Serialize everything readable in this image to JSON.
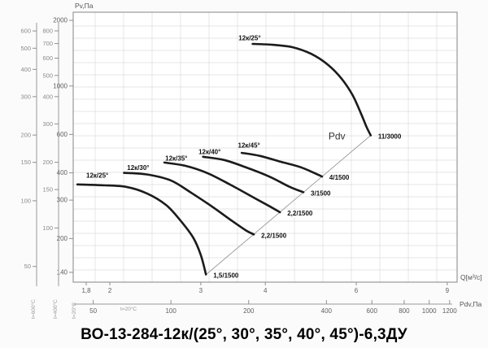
{
  "page": {
    "title": "ВО-13-284-12к/(25°, 30°, 35°, 40°, 45°)-6,3ДУ"
  },
  "chart_data": {
    "type": "line",
    "description": "Fan aerodynamic performance curves, log-log scales: static pressure Pv vs volume flow Q",
    "x_axis": {
      "label": "Q[м³/с]",
      "scale": "log",
      "tick_labels": [
        "1,8",
        "2",
        "3",
        "4",
        "6",
        "9"
      ],
      "range": [
        1.7,
        9.4
      ]
    },
    "y_axis": {
      "label": "Pv,Па",
      "condition": "t=20°C",
      "scale": "log",
      "ticks": [
        2000,
        1000,
        600,
        400,
        300,
        200,
        140
      ],
      "range": [
        126,
        2180
      ]
    },
    "secondary_y_axes": [
      {
        "condition": "t=600°C",
        "ticks": [
          600,
          500,
          400,
          300,
          200,
          150,
          100,
          50
        ]
      },
      {
        "condition": "t=400°C",
        "ticks": [
          800,
          700,
          600,
          500,
          400,
          300,
          200,
          150,
          100
        ]
      }
    ],
    "pdv_axis": {
      "label": "Pdv,Па",
      "condition": "t=20°C",
      "ticks": [
        50,
        100,
        200,
        400,
        600,
        800,
        1000,
        1200
      ]
    },
    "pdv_line": {
      "label": "Pdv",
      "k": 14.5,
      "q_range": [
        3.07,
        6.4
      ],
      "label_at": [
        5.3,
        570
      ]
    },
    "series": [
      {
        "name": "12к/25°",
        "power_label": "11/3000",
        "label_at": [
          3.55,
          1620
        ],
        "points": [
          [
            3.78,
            1560
          ],
          [
            4.13,
            1545
          ],
          [
            4.52,
            1505
          ],
          [
            4.92,
            1400
          ],
          [
            5.29,
            1250
          ],
          [
            5.62,
            1080
          ],
          [
            5.9,
            910
          ],
          [
            6.13,
            747
          ],
          [
            6.28,
            650
          ],
          [
            6.4,
            594
          ]
        ]
      },
      {
        "name": "12к/25°",
        "power_label": "1,5/1500",
        "label_at": [
          1.8,
          380
        ],
        "points": [
          [
            1.73,
            354
          ],
          [
            1.93,
            351
          ],
          [
            2.15,
            345
          ],
          [
            2.36,
            322
          ],
          [
            2.57,
            285
          ],
          [
            2.74,
            242
          ],
          [
            2.9,
            202
          ],
          [
            3.0,
            168
          ],
          [
            3.07,
            137
          ]
        ]
      },
      {
        "name": "12к/30°",
        "power_label": "2,2/1500",
        "label_at": [
          2.16,
          412
        ],
        "points": [
          [
            2.13,
            400
          ],
          [
            2.35,
            394
          ],
          [
            2.62,
            370
          ],
          [
            2.87,
            325
          ],
          [
            3.15,
            281
          ],
          [
            3.44,
            242
          ],
          [
            3.68,
            217
          ],
          [
            3.8,
            209
          ]
        ]
      },
      {
        "name": "12к/35°",
        "power_label": "2,2/1500",
        "label_at": [
          2.56,
          455
        ],
        "points": [
          [
            2.55,
            446
          ],
          [
            2.8,
            431
          ],
          [
            3.09,
            399
          ],
          [
            3.43,
            352
          ],
          [
            3.8,
            308
          ],
          [
            4.08,
            281
          ],
          [
            4.27,
            264
          ]
        ]
      },
      {
        "name": "12к/40°",
        "power_label": "3/1500",
        "label_at": [
          2.97,
          487
        ],
        "points": [
          [
            3.03,
            474
          ],
          [
            3.33,
            458
          ],
          [
            3.68,
            423
          ],
          [
            4.08,
            384
          ],
          [
            4.46,
            345
          ],
          [
            4.74,
            326
          ]
        ]
      },
      {
        "name": "12к/45°",
        "power_label": "4/1500",
        "label_at": [
          3.54,
          522
        ],
        "points": [
          [
            3.6,
            494
          ],
          [
            3.91,
            478
          ],
          [
            4.28,
            450
          ],
          [
            4.69,
            424
          ],
          [
            5.15,
            385
          ]
        ]
      }
    ]
  }
}
